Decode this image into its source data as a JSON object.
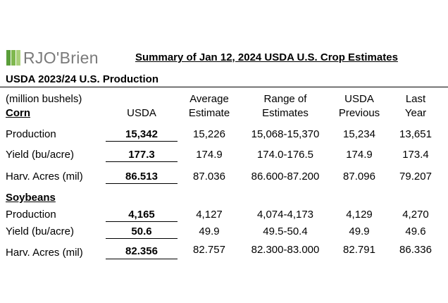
{
  "logo": {
    "text": "RJO'Brien"
  },
  "title": "Summary of Jan 12, 2024 USDA U.S. Crop Estimates",
  "subtitle": "USDA 2023/24 U.S. Production",
  "units_note": "(million bushels)",
  "headers": {
    "usda": "USDA",
    "avg_1": "Average",
    "avg_2": "Estimate",
    "range_1": "Range of",
    "range_2": "Estimates",
    "prev_1": "USDA",
    "prev_2": "Previous",
    "last_1": "Last",
    "last_2": "Year"
  },
  "sections": [
    {
      "name": "Corn",
      "rows": [
        {
          "label": "Production",
          "usda": "15,342",
          "avg": "15,226",
          "range": "15,068-15,370",
          "prev": "15,234",
          "last": "13,651"
        },
        {
          "label": "Yield (bu/acre)",
          "usda": "177.3",
          "avg": "174.9",
          "range": "174.0-176.5",
          "prev": "174.9",
          "last": "173.4"
        },
        {
          "label": "Harv. Acres (mil)",
          "usda": "86.513",
          "avg": "87.036",
          "range": "86.600-87.200",
          "prev": "87.096",
          "last": "79.207"
        }
      ]
    },
    {
      "name": "Soybeans",
      "rows": [
        {
          "label": "Production",
          "usda": "4,165",
          "avg": "4,127",
          "range": "4,074-4,173",
          "prev": "4,129",
          "last": "4,270"
        },
        {
          "label": "Yield (bu/acre)",
          "usda": "50.6",
          "avg": "49.9",
          "range": "49.5-50.4",
          "prev": "49.9",
          "last": "49.6"
        },
        {
          "label": "Harv. Acres (mil)",
          "usda": "82.356",
          "avg": "82.757",
          "range": "82.300-83.000",
          "prev": "82.791",
          "last": "86.336"
        }
      ]
    }
  ]
}
